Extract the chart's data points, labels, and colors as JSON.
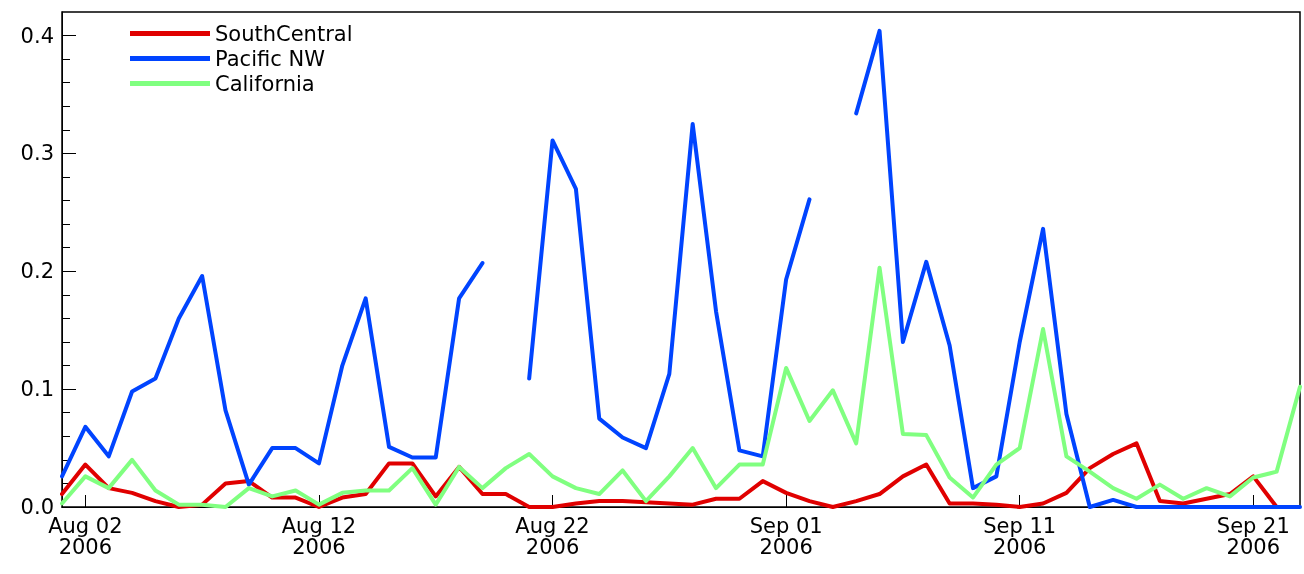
{
  "chart_data": {
    "type": "line",
    "marker": "none",
    "line_style": "solid",
    "grid": false,
    "legend": "top left",
    "xlim": [
      "2006-08-01",
      "2006-09-23"
    ],
    "xticks": [
      {
        "value": "2006-08-02",
        "label": "Aug 02\n2006"
      },
      {
        "value": "2006-08-12",
        "label": "Aug 12\n2006"
      },
      {
        "value": "2006-08-22",
        "label": "Aug 22\n2006"
      },
      {
        "value": "2006-09-01",
        "label": "Sep 01\n2006"
      },
      {
        "value": "2006-09-11",
        "label": "Sep 11\n2006"
      },
      {
        "value": "2006-09-21",
        "label": "Sep 21\n2006"
      }
    ],
    "ylim": [
      0,
      0.42
    ],
    "yticks": [
      {
        "value": 0,
        "label": "0.0"
      },
      0.1,
      0.2,
      0.3,
      0.4
    ],
    "x": [
      "2006-08-01",
      "2006-08-02",
      "2006-08-03",
      "2006-08-04",
      "2006-08-05",
      "2006-08-06",
      "2006-08-07",
      "2006-08-08",
      "2006-08-09",
      "2006-08-10",
      "2006-08-11",
      "2006-08-12",
      "2006-08-13",
      "2006-08-14",
      "2006-08-15",
      "2006-08-16",
      "2006-08-17",
      "2006-08-18",
      "2006-08-19",
      "2006-08-20",
      "2006-08-21",
      "2006-08-22",
      "2006-08-23",
      "2006-08-24",
      "2006-08-25",
      "2006-08-26",
      "2006-08-27",
      "2006-08-28",
      "2006-08-29",
      "2006-08-30",
      "2006-08-31",
      "2006-09-01",
      "2006-09-02",
      "2006-09-03",
      "2006-09-04",
      "2006-09-05",
      "2006-09-06",
      "2006-09-07",
      "2006-09-08",
      "2006-09-09",
      "2006-09-10",
      "2006-09-11",
      "2006-09-12",
      "2006-09-13",
      "2006-09-14",
      "2006-09-15",
      "2006-09-16",
      "2006-09-17",
      "2006-09-18",
      "2006-09-19",
      "2006-09-20",
      "2006-09-21",
      "2006-09-22",
      "2006-09-23"
    ],
    "series": [
      {
        "name": "SouthCentral",
        "color": "#e00000",
        "values": [
          0.011,
          0.036,
          0.016,
          0.012,
          0.005,
          0,
          0.002,
          0.02,
          0.022,
          0.008,
          0.008,
          0,
          0.008,
          0.011,
          0.037,
          0.037,
          0.009,
          0.034,
          0.011,
          0.011,
          0,
          0,
          0.003,
          0.005,
          0.005,
          0.004,
          0.003,
          0.002,
          0.007,
          0.007,
          0.022,
          0.012,
          0.005,
          0,
          0.005,
          0.011,
          0.026,
          0.036,
          0.003,
          0.003,
          0.002,
          0,
          0.003,
          0.012,
          0.033,
          0.045,
          0.054,
          0.005,
          0.003,
          0.007,
          0.011,
          0.026,
          0,
          null
        ]
      },
      {
        "name": "Pacific NW",
        "color": "#0044ff",
        "values": [
          0.026,
          0.068,
          0.043,
          0.098,
          0.109,
          0.16,
          0.196,
          0.082,
          0.019,
          0.05,
          0.05,
          0.037,
          0.12,
          0.177,
          0.051,
          0.042,
          0.042,
          0.177,
          0.207,
          null,
          0.109,
          0.311,
          0.27,
          0.075,
          0.059,
          0.05,
          0.113,
          0.325,
          0.166,
          0.048,
          0.043,
          0.193,
          0.261,
          null,
          0.334,
          0.404,
          0.14,
          0.208,
          0.137,
          0.016,
          0.026,
          0.14,
          0.236,
          0.079,
          0,
          0.006,
          0,
          0,
          0,
          0,
          0,
          0,
          0,
          0
        ]
      },
      {
        "name": "California",
        "color": "#80ff80",
        "values": [
          0.003,
          0.026,
          0.016,
          0.04,
          0.014,
          0.002,
          0.002,
          0,
          0.016,
          0.009,
          0.014,
          0.002,
          0.012,
          0.014,
          0.014,
          0.033,
          0.002,
          0.034,
          0.016,
          0.033,
          0.045,
          0.026,
          0.016,
          0.011,
          0.031,
          0.005,
          0.026,
          0.05,
          0.016,
          0.036,
          0.036,
          0.118,
          0.073,
          0.099,
          0.054,
          0.203,
          0.062,
          0.061,
          0.025,
          0.008,
          0.036,
          0.05,
          0.151,
          0.043,
          0.03,
          0.016,
          0.007,
          0.019,
          0.007,
          0.016,
          0.009,
          0.025,
          0.03,
          0.102
        ]
      }
    ]
  }
}
